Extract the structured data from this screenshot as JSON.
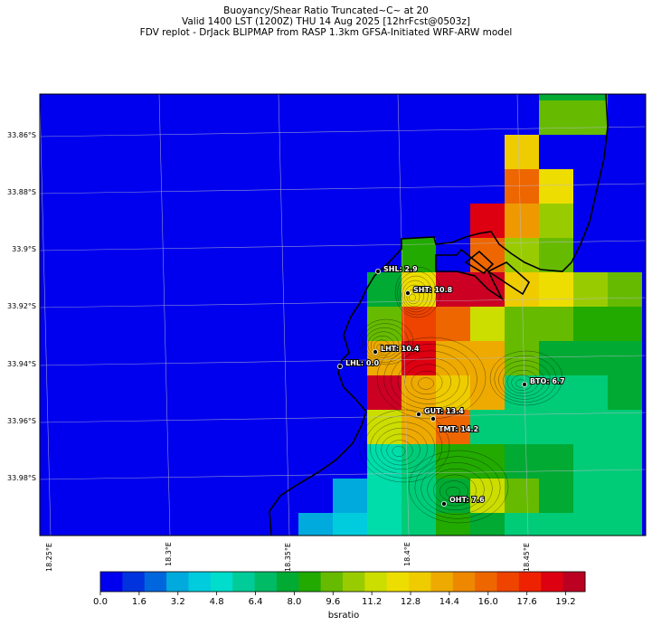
{
  "titles": {
    "line1": "Buoyancy/Shear Ratio Truncated~C~    at 20",
    "line2": "Valid 1400 LST (1200Z) THU 14 Aug 2025 [12hrFcst@0503z]",
    "line3": "FDV replot - DrJack BLIPMAP from RASP 1.3km GFSA-Initiated WRF-ARW model"
  },
  "axes": {
    "lat_labels": [
      "33.86°S",
      "33.88°S",
      "33.9°S",
      "33.92°S",
      "33.94°S",
      "33.96°S",
      "33.98°S"
    ],
    "lon_labels": [
      "18.25°E",
      "18.3°E",
      "18.35°E",
      "18.4°E",
      "18.45°E"
    ]
  },
  "colorbar": {
    "label": "bsratio",
    "ticks": [
      "0.0",
      "1.6",
      "3.2",
      "4.8",
      "6.4",
      "8.0",
      "9.6",
      "11.2",
      "12.8",
      "14.4",
      "16.0",
      "17.6",
      "19.2"
    ],
    "range": [
      0,
      20
    ],
    "colors": [
      "#0000ee",
      "#0033dd",
      "#0066dd",
      "#00aadd",
      "#00ccdd",
      "#00ddcc",
      "#00cc99",
      "#00bb66",
      "#00aa33",
      "#22aa00",
      "#66bb00",
      "#99cc00",
      "#ccdd00",
      "#eedd00",
      "#eecc00",
      "#eeaa00",
      "#ee8800",
      "#ee6600",
      "#ee4400",
      "#ee2200",
      "#dd0011",
      "#bb0022"
    ]
  },
  "places": [
    {
      "name": "SHL",
      "value": "2.9",
      "label": "SHL: 2.9"
    },
    {
      "name": "SHT",
      "value": "10.8",
      "label": "SHT: 10.8"
    },
    {
      "name": "LHT",
      "value": "10.4",
      "label": "LHT: 10.4"
    },
    {
      "name": "LHL",
      "value": "0.0",
      "label": "LHL: 0.0"
    },
    {
      "name": "BTO",
      "value": "6.7",
      "label": "BTO: 6.7"
    },
    {
      "name": "GUT",
      "value": "13.4",
      "label": "GUT: 13.4"
    },
    {
      "name": "TMT",
      "value": "14.2",
      "label": "TMT: 14.2"
    },
    {
      "name": "OHT",
      "value": "7.6",
      "label": "OHT: 7.6"
    }
  ],
  "grid_colors": {
    "sea": "#0000ee"
  },
  "map_cells": [
    {
      "col": 5,
      "row": 2,
      "c": "#22aa00"
    },
    {
      "col": 4,
      "row": 3,
      "c": "#00aa33"
    },
    {
      "col": 5,
      "row": 3,
      "c": "#eedd00"
    },
    {
      "col": 6,
      "row": 3,
      "c": "#cc0022"
    },
    {
      "col": 7,
      "row": 3,
      "c": "#cc0022"
    },
    {
      "col": 8,
      "row": 3,
      "c": "#eecc00"
    },
    {
      "col": 9,
      "row": 3,
      "c": "#eedd00"
    },
    {
      "col": 10,
      "row": 3,
      "c": "#99cc00"
    },
    {
      "col": 11,
      "row": 3,
      "c": "#66bb00"
    },
    {
      "col": 4,
      "row": 4,
      "c": "#66bb00"
    },
    {
      "col": 5,
      "row": 4,
      "c": "#ee4400"
    },
    {
      "col": 6,
      "row": 4,
      "c": "#ee6600"
    },
    {
      "col": 7,
      "row": 4,
      "c": "#ccdd00"
    },
    {
      "col": 8,
      "row": 4,
      "c": "#66bb00"
    },
    {
      "col": 9,
      "row": 4,
      "c": "#66bb00"
    },
    {
      "col": 10,
      "row": 4,
      "c": "#22aa00"
    },
    {
      "col": 11,
      "row": 4,
      "c": "#22aa00"
    },
    {
      "col": 4,
      "row": 5,
      "c": "#eeaa00"
    },
    {
      "col": 5,
      "row": 5,
      "c": "#dd0011"
    },
    {
      "col": 6,
      "row": 5,
      "c": "#eeaa00"
    },
    {
      "col": 7,
      "row": 5,
      "c": "#eeaa00"
    },
    {
      "col": 8,
      "row": 5,
      "c": "#66bb00"
    },
    {
      "col": 9,
      "row": 5,
      "c": "#00aa33"
    },
    {
      "col": 10,
      "row": 5,
      "c": "#00aa33"
    },
    {
      "col": 11,
      "row": 5,
      "c": "#00aa33"
    },
    {
      "col": 4,
      "row": 6,
      "c": "#cc0022"
    },
    {
      "col": 5,
      "row": 6,
      "c": "#eeaa00"
    },
    {
      "col": 6,
      "row": 6,
      "c": "#eecc00"
    },
    {
      "col": 7,
      "row": 6,
      "c": "#eeaa00"
    },
    {
      "col": 8,
      "row": 6,
      "c": "#00cc77"
    },
    {
      "col": 9,
      "row": 6,
      "c": "#00cc77"
    },
    {
      "col": 10,
      "row": 6,
      "c": "#00cc77"
    },
    {
      "col": 11,
      "row": 6,
      "c": "#00aa33"
    },
    {
      "col": 4,
      "row": 7,
      "c": "#ccdd00"
    },
    {
      "col": 5,
      "row": 7,
      "c": "#eeaa00"
    },
    {
      "col": 6,
      "row": 7,
      "c": "#ee6600"
    },
    {
      "col": 7,
      "row": 7,
      "c": "#00cc77"
    },
    {
      "col": 8,
      "row": 7,
      "c": "#00cc77"
    },
    {
      "col": 9,
      "row": 7,
      "c": "#00cc77"
    },
    {
      "col": 10,
      "row": 7,
      "c": "#00cc77"
    },
    {
      "col": 11,
      "row": 7,
      "c": "#00cc77"
    },
    {
      "col": 4,
      "row": 8,
      "c": "#00ddaa"
    },
    {
      "col": 5,
      "row": 8,
      "c": "#00cc77"
    },
    {
      "col": 6,
      "row": 8,
      "c": "#22aa00"
    },
    {
      "col": 7,
      "row": 8,
      "c": "#22aa00"
    },
    {
      "col": 8,
      "row": 8,
      "c": "#00aa33"
    },
    {
      "col": 9,
      "row": 8,
      "c": "#00aa33"
    },
    {
      "col": 10,
      "row": 8,
      "c": "#00cc77"
    },
    {
      "col": 11,
      "row": 8,
      "c": "#00cc77"
    },
    {
      "col": 3,
      "row": 9,
      "c": "#00aadd"
    },
    {
      "col": 4,
      "row": 9,
      "c": "#00ddaa"
    },
    {
      "col": 5,
      "row": 9,
      "c": "#00cc77"
    },
    {
      "col": 6,
      "row": 9,
      "c": "#00aa33"
    },
    {
      "col": 7,
      "row": 9,
      "c": "#ccdd00"
    },
    {
      "col": 8,
      "row": 9,
      "c": "#66bb00"
    },
    {
      "col": 9,
      "row": 9,
      "c": "#00aa33"
    },
    {
      "col": 10,
      "row": 9,
      "c": "#00cc77"
    },
    {
      "col": 11,
      "row": 9,
      "c": "#00cc77"
    },
    {
      "col": 2,
      "row": 10,
      "c": "#00aadd"
    },
    {
      "col": 3,
      "row": 10,
      "c": "#00ccdd"
    },
    {
      "col": 4,
      "row": 10,
      "c": "#00ddaa"
    },
    {
      "col": 5,
      "row": 10,
      "c": "#00cc77"
    },
    {
      "col": 6,
      "row": 10,
      "c": "#22aa00"
    },
    {
      "col": 7,
      "row": 10,
      "c": "#00aa33"
    },
    {
      "col": 8,
      "row": 10,
      "c": "#00cc77"
    },
    {
      "col": 9,
      "row": 10,
      "c": "#00cc77"
    },
    {
      "col": 10,
      "row": 10,
      "c": "#00cc77"
    },
    {
      "col": 11,
      "row": 10,
      "c": "#00cc77"
    },
    {
      "col": 9,
      "row": -3,
      "c": "#00aa33"
    },
    {
      "col": 10,
      "row": -3,
      "c": "#00aa33"
    },
    {
      "col": 9,
      "row": -2,
      "c": "#66bb00"
    },
    {
      "col": 10,
      "row": -2,
      "c": "#66bb00"
    },
    {
      "col": 8,
      "row": -1,
      "c": "#eecc00"
    },
    {
      "col": 9,
      "row": -1,
      "c": "#0000ee"
    },
    {
      "col": 8,
      "row": 0,
      "c": "#ee6600"
    },
    {
      "col": 9,
      "row": 0,
      "c": "#eedd00"
    },
    {
      "col": 7,
      "row": 1,
      "c": "#dd0011"
    },
    {
      "col": 8,
      "row": 1,
      "c": "#ee9900"
    },
    {
      "col": 9,
      "row": 1,
      "c": "#99cc00"
    },
    {
      "col": 7,
      "row": 2,
      "c": "#ee6600"
    },
    {
      "col": 8,
      "row": 2,
      "c": "#99cc00"
    },
    {
      "col": 9,
      "row": 2,
      "c": "#66bb00"
    }
  ]
}
